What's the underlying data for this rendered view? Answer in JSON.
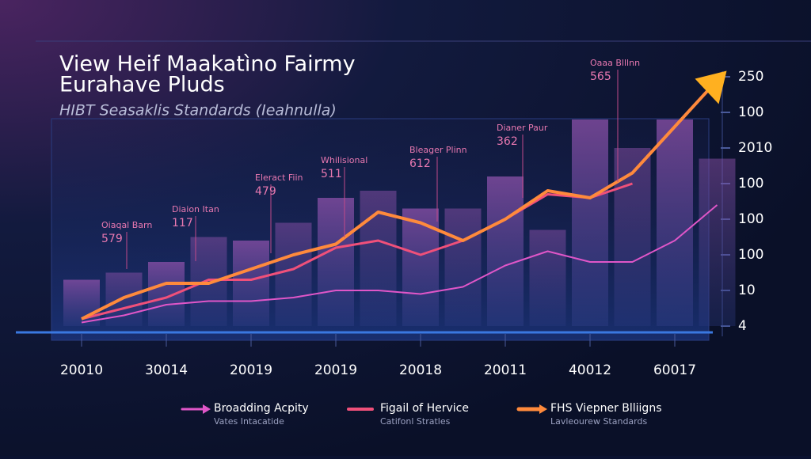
{
  "chart_data": {
    "type": "bar-line",
    "title": [
      "View Heif Maakatìno Fairmy",
      "Eurahave Pluds"
    ],
    "subtitle": "HIBT Seasaklis Standards (Ieahnulla)",
    "categories": [
      "20010",
      null,
      "30014",
      null,
      "20019",
      null,
      "20019",
      null,
      "20018",
      null,
      "20011",
      null,
      "40012",
      null,
      "60017",
      null
    ],
    "bars": {
      "color": "#7a4a9e",
      "values": [
        1.3,
        1.5,
        1.8,
        2.5,
        2.4,
        2.9,
        3.6,
        3.8,
        3.3,
        3.3,
        4.2,
        2.7,
        5.8,
        5.0,
        5.8,
        4.7
      ]
    },
    "series": [
      {
        "name": "Broadding Acpity",
        "note": "Vates Intacatide",
        "color": "#e056c8",
        "width": 2,
        "values": [
          0.1,
          0.3,
          0.6,
          0.7,
          0.7,
          0.8,
          1.0,
          1.0,
          0.9,
          1.1,
          1.7,
          2.1,
          1.8,
          1.8,
          2.4,
          3.4
        ]
      },
      {
        "name": "Figail of Hervice",
        "note": "Catifonl Stratles",
        "color": "#f0507a",
        "width": 3,
        "values": [
          0.2,
          0.5,
          0.8,
          1.3,
          1.3,
          1.6,
          2.2,
          2.4,
          2.0,
          2.4,
          3.0,
          3.7,
          3.6,
          4.0,
          null,
          null
        ]
      },
      {
        "name": "FHS Viepner Blliigns",
        "note": "Lavleourew Standards",
        "color": "#ff8a3c",
        "width": 4,
        "values": [
          0.2,
          0.8,
          1.2,
          1.2,
          1.6,
          2.0,
          2.3,
          3.2,
          2.9,
          2.4,
          3.0,
          3.8,
          3.6,
          4.3,
          5.6,
          6.9
        ]
      }
    ],
    "ylim": [
      0,
      7
    ],
    "yticks": [
      {
        "value": 0,
        "label": "4"
      },
      {
        "value": 1,
        "label": "10"
      },
      {
        "value": 2,
        "label": "100"
      },
      {
        "value": 3,
        "label": "100"
      },
      {
        "value": 4,
        "label": "100"
      },
      {
        "value": 5,
        "label": "2010"
      },
      {
        "value": 6,
        "label": "100"
      },
      {
        "value": 7,
        "label": "250"
      }
    ],
    "annotations": [
      {
        "title": "Oiaqal Barn",
        "value": 579
      },
      {
        "title": "Diaion Itan",
        "value": 117
      },
      {
        "title": "Eleract Fiin",
        "value": 479
      },
      {
        "title": "Whilisional",
        "value": 511
      },
      {
        "title": "Bleager Plinn",
        "value": 612
      },
      {
        "title": "Dianer Paur",
        "value": 362
      },
      {
        "title": "Oaaa Blllnn",
        "value": 565
      }
    ]
  }
}
